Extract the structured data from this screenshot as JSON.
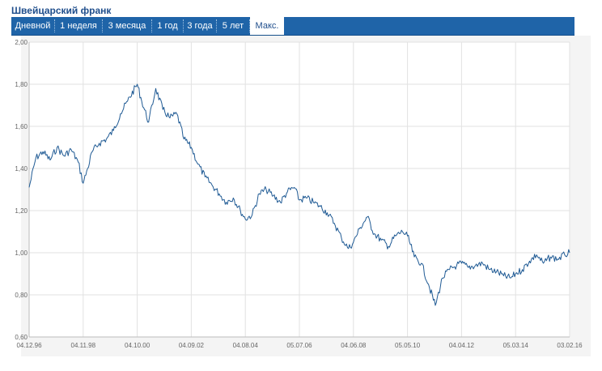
{
  "title": "Швейцарский франк",
  "tabs": [
    {
      "label": "Дневной",
      "active": false
    },
    {
      "label": "1 неделя",
      "active": false
    },
    {
      "label": "3 месяца",
      "active": false
    },
    {
      "label": "1 год",
      "active": false
    },
    {
      "label": "3 года",
      "active": false
    },
    {
      "label": "5 лет",
      "active": false
    },
    {
      "label": "Макс.",
      "active": true
    }
  ],
  "colors": {
    "line": "#1f5a94",
    "tab_bar": "#1f64a8",
    "title": "#1f4e8c"
  },
  "chart_data": {
    "type": "line",
    "title": "",
    "xlabel": "",
    "ylabel": "",
    "ylim": [
      0.6,
      2.0
    ],
    "yticks": [
      "0,60",
      "0,80",
      "1,00",
      "1,20",
      "1,40",
      "1,60",
      "1,80",
      "2,00"
    ],
    "xticks": [
      "04.12.96",
      "04.11.98",
      "04.10.00",
      "04.09.02",
      "04.08.04",
      "05.07.06",
      "04.06.08",
      "05.05.10",
      "04.04.12",
      "05.03.14",
      "03.02.16"
    ],
    "grid": true,
    "legend": "none",
    "series": [
      {
        "x": [
          "04.12.96",
          "01.03.97",
          "01.06.97",
          "01.09.97",
          "01.12.97",
          "01.03.98",
          "01.06.98",
          "01.09.98",
          "04.11.98",
          "01.01.99",
          "01.03.99",
          "01.06.99",
          "01.09.99",
          "01.12.99",
          "01.03.00",
          "01.06.00",
          "04.10.00",
          "01.12.00",
          "01.03.01",
          "01.06.01",
          "01.09.01",
          "01.12.01",
          "01.03.02",
          "01.06.02",
          "04.09.02",
          "01.12.02",
          "01.03.03",
          "01.06.03",
          "01.09.03",
          "01.12.03",
          "01.03.04",
          "01.06.04",
          "04.08.04",
          "01.11.04",
          "01.02.05",
          "01.05.05",
          "01.08.05",
          "01.11.05",
          "01.02.06",
          "01.05.06",
          "05.07.06",
          "01.10.06",
          "01.01.07",
          "01.04.07",
          "01.07.07",
          "01.10.07",
          "01.01.08",
          "01.04.08",
          "04.06.08",
          "01.09.08",
          "01.12.08",
          "01.03.09",
          "01.06.09",
          "01.09.09",
          "01.12.09",
          "01.03.10",
          "05.05.10",
          "01.08.10",
          "01.11.10",
          "01.02.11",
          "01.05.11",
          "01.08.11",
          "01.11.11",
          "01.02.12",
          "04.04.12",
          "01.07.12",
          "01.10.12",
          "01.01.13",
          "01.04.13",
          "01.07.13",
          "01.10.13",
          "01.01.14",
          "05.03.14",
          "01.06.14",
          "01.09.14",
          "01.12.14",
          "01.03.15",
          "01.06.15",
          "01.09.15",
          "01.12.15",
          "03.02.16"
        ],
        "y": [
          1.31,
          1.45,
          1.48,
          1.44,
          1.5,
          1.46,
          1.49,
          1.43,
          1.33,
          1.4,
          1.48,
          1.52,
          1.54,
          1.58,
          1.66,
          1.72,
          1.8,
          1.72,
          1.62,
          1.78,
          1.68,
          1.64,
          1.66,
          1.54,
          1.5,
          1.42,
          1.36,
          1.32,
          1.28,
          1.24,
          1.26,
          1.2,
          1.16,
          1.18,
          1.28,
          1.3,
          1.27,
          1.24,
          1.29,
          1.31,
          1.25,
          1.26,
          1.24,
          1.22,
          1.19,
          1.14,
          1.07,
          1.02,
          1.05,
          1.12,
          1.17,
          1.09,
          1.06,
          1.03,
          1.08,
          1.1,
          1.08,
          0.98,
          0.95,
          0.85,
          0.75,
          0.88,
          0.92,
          0.94,
          0.95,
          0.93,
          0.94,
          0.95,
          0.92,
          0.91,
          0.89,
          0.88,
          0.9,
          0.92,
          0.96,
          0.99,
          0.95,
          0.98,
          0.97,
          0.99,
          1.0
        ]
      }
    ]
  }
}
